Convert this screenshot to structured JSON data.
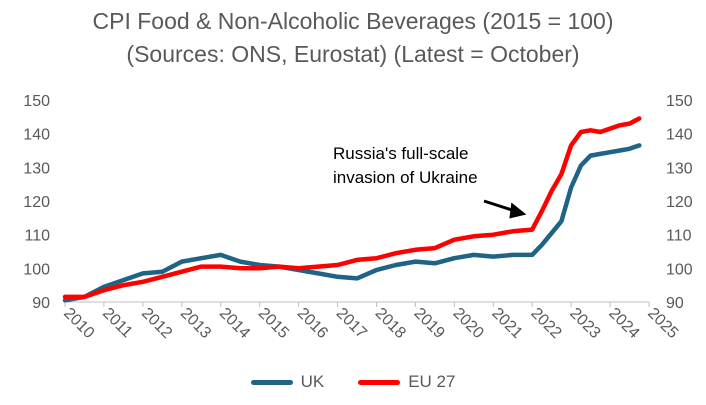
{
  "chart_data": {
    "type": "line",
    "title": "CPI Food & Non-Alcoholic Beverages (2015 = 100)",
    "subtitle": "(Sources: ONS, Eurostat) (Latest = October)",
    "xlabel": "",
    "ylabel": "",
    "xlim": [
      2010,
      2025
    ],
    "ylim": [
      90,
      150
    ],
    "x_ticks": [
      "2010",
      "2011",
      "2012",
      "2013",
      "2014",
      "2015",
      "2016",
      "2017",
      "2018",
      "2019",
      "2020",
      "2021",
      "2022",
      "2023",
      "2024",
      "2025"
    ],
    "y_ticks": [
      "90",
      "100",
      "110",
      "120",
      "130",
      "140",
      "150"
    ],
    "grid": false,
    "legend_position": "bottom",
    "annotation": {
      "text_lines": [
        "Russia's full-scale",
        "invasion of Ukraine"
      ],
      "points_to": [
        2021.85,
        116
      ]
    },
    "series": [
      {
        "name": "UK",
        "color": "#1F6484",
        "x": [
          2010.0,
          2010.5,
          2011.0,
          2011.5,
          2012.0,
          2012.5,
          2013.0,
          2013.5,
          2014.0,
          2014.5,
          2015.0,
          2015.5,
          2016.0,
          2016.5,
          2017.0,
          2017.5,
          2018.0,
          2018.5,
          2019.0,
          2019.5,
          2020.0,
          2020.5,
          2021.0,
          2021.5,
          2022.0,
          2022.25,
          2022.5,
          2022.75,
          2023.0,
          2023.25,
          2023.5,
          2023.75,
          2024.0,
          2024.25,
          2024.5,
          2024.75
        ],
        "values": [
          90.5,
          91.5,
          94.5,
          96.5,
          98.5,
          99.0,
          102.0,
          103.0,
          104.0,
          102.0,
          101.0,
          100.5,
          99.5,
          98.5,
          97.5,
          97.0,
          99.5,
          101.0,
          102.0,
          101.5,
          103.0,
          104.0,
          103.5,
          104.0,
          104.0,
          107.0,
          110.5,
          114.0,
          124.0,
          130.5,
          133.5,
          134.0,
          134.5,
          135.0,
          135.5,
          136.5
        ]
      },
      {
        "name": "EU 27",
        "color": "#FF0000",
        "x": [
          2010.0,
          2010.5,
          2011.0,
          2011.5,
          2012.0,
          2012.5,
          2013.0,
          2013.5,
          2014.0,
          2014.5,
          2015.0,
          2015.5,
          2016.0,
          2016.5,
          2017.0,
          2017.5,
          2018.0,
          2018.5,
          2019.0,
          2019.5,
          2020.0,
          2020.5,
          2021.0,
          2021.5,
          2022.0,
          2022.25,
          2022.5,
          2022.75,
          2023.0,
          2023.25,
          2023.5,
          2023.75,
          2024.0,
          2024.25,
          2024.5,
          2024.75
        ],
        "values": [
          91.5,
          91.5,
          93.5,
          95.0,
          96.0,
          97.5,
          99.0,
          100.5,
          100.5,
          100.0,
          100.0,
          100.5,
          100.0,
          100.5,
          101.0,
          102.5,
          103.0,
          104.5,
          105.5,
          106.0,
          108.5,
          109.5,
          110.0,
          111.0,
          111.5,
          117.0,
          123.0,
          128.0,
          136.5,
          140.5,
          141.0,
          140.5,
          141.5,
          142.5,
          143.0,
          144.5
        ]
      }
    ]
  }
}
